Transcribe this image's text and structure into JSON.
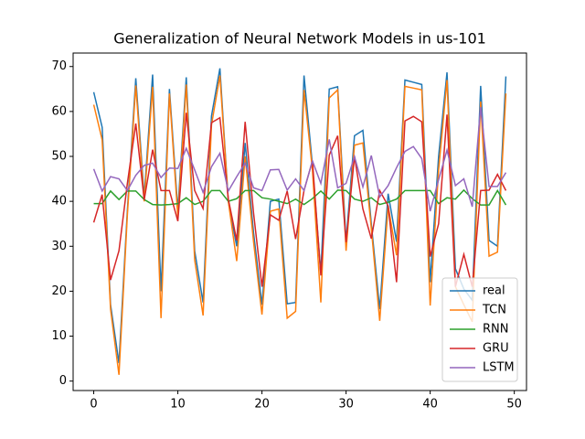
{
  "chart_data": {
    "type": "line",
    "title": "Generalization of Neural Network Models in us-101",
    "x": [
      0,
      1,
      2,
      3,
      4,
      5,
      6,
      7,
      8,
      9,
      10,
      11,
      12,
      13,
      14,
      15,
      16,
      17,
      18,
      19,
      20,
      21,
      22,
      23,
      24,
      25,
      26,
      27,
      28,
      29,
      30,
      31,
      32,
      33,
      34,
      35,
      36,
      37,
      38,
      39,
      40,
      41,
      42,
      43,
      44,
      45,
      46,
      47,
      48,
      49
    ],
    "series": [
      {
        "name": "real",
        "color": "#1f77b4",
        "values": [
          64.3,
          56.5,
          17,
          4,
          38,
          67.4,
          41,
          68.2,
          20,
          65,
          38,
          67.6,
          29,
          17.5,
          59,
          69.6,
          40,
          30,
          53,
          33,
          17,
          40,
          40.5,
          17.2,
          17.5,
          68,
          48,
          24,
          65,
          65.5,
          31,
          54.6,
          55.8,
          35,
          16,
          41.7,
          31,
          67,
          66.5,
          66,
          22,
          50,
          68.7,
          25,
          20.5,
          18,
          65.7,
          31.3,
          30,
          67.8
        ]
      },
      {
        "name": "TCN",
        "color": "#ff7f0e",
        "values": [
          61.5,
          53.7,
          16,
          1.4,
          37,
          65.8,
          40,
          65.5,
          14,
          64,
          36.5,
          66,
          27,
          14.6,
          57,
          68,
          40,
          26.7,
          50,
          31,
          14.8,
          37.8,
          38.3,
          14,
          15.5,
          64.8,
          47,
          17.5,
          63,
          64.8,
          29,
          52.5,
          53,
          34,
          13.4,
          39,
          28,
          65.6,
          65.2,
          64.8,
          16.8,
          47,
          67,
          21,
          17,
          13.2,
          62.2,
          27.8,
          28.7,
          64
        ]
      },
      {
        "name": "RNN",
        "color": "#2ca02c",
        "values": [
          39.5,
          39.5,
          42.3,
          40.4,
          42.3,
          42.3,
          40.4,
          39.3,
          39.2,
          39.3,
          39.5,
          40.8,
          39.3,
          40,
          42.4,
          42.4,
          40,
          40.6,
          42.4,
          42.4,
          40.8,
          40.5,
          40,
          39.5,
          40.5,
          39.3,
          40.6,
          42.3,
          40.5,
          42.5,
          42.4,
          40.5,
          40,
          40.8,
          39.3,
          39.8,
          40.5,
          42.4,
          42.4,
          42.4,
          42.4,
          39.5,
          40.8,
          40.5,
          42.5,
          40.6,
          39.2,
          39.2,
          42.4,
          39.2
        ]
      },
      {
        "name": "GRU",
        "color": "#d62728",
        "values": [
          35.3,
          41.5,
          22.5,
          29,
          44,
          57.3,
          40.3,
          51.5,
          42.4,
          42.4,
          35.6,
          59.7,
          42.4,
          38.4,
          57.5,
          58.6,
          40.5,
          31.3,
          57.7,
          37.4,
          21,
          37,
          35.8,
          42.3,
          31.6,
          42.4,
          49,
          23.5,
          50.3,
          54.6,
          30.9,
          50,
          38.3,
          31.7,
          42.4,
          39,
          22,
          57.9,
          58.9,
          57.7,
          27.7,
          35,
          59.3,
          21,
          28.2,
          21,
          42.4,
          42.5,
          46,
          42.4
        ]
      },
      {
        "name": "LSTM",
        "color": "#9467bd",
        "values": [
          47.2,
          42.3,
          45.5,
          45,
          42.4,
          45.8,
          48,
          48.5,
          45.3,
          47.4,
          47.3,
          51.8,
          47,
          42,
          47.7,
          50.7,
          42.3,
          45.5,
          48.5,
          43,
          42.4,
          47,
          47.1,
          42.5,
          45,
          42.4,
          49,
          44,
          53.8,
          43,
          44,
          50,
          43.2,
          50.2,
          41,
          43.5,
          47.5,
          51.1,
          52.2,
          49.5,
          37.8,
          44.8,
          51.4,
          43.5,
          45,
          38.8,
          61,
          43.3,
          43.3,
          46.4
        ]
      }
    ],
    "xlim": [
      -2.45,
      51.45
    ],
    "xticks": [
      0,
      10,
      20,
      30,
      40,
      50
    ],
    "ylim": [
      -2.1,
      73.0
    ],
    "yticks": [
      0,
      10,
      20,
      30,
      40,
      50,
      60,
      70
    ],
    "legend": "lower right"
  }
}
